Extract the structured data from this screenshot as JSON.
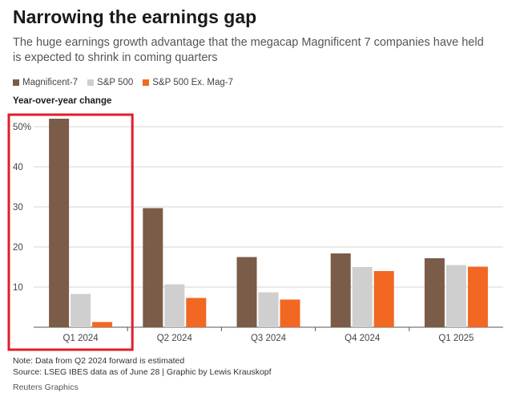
{
  "title": "Narrowing the earnings gap",
  "subtitle": "The huge earnings growth advantage that the megacap Magnificent 7 companies have held is expected to shrink in coming quarters",
  "note": "Note: Data from Q2 2024 forward is estimated",
  "source": "Source: LSEG IBES data as of June 28 | Graphic by Lewis Krauskopf",
  "brand": "Reuters Graphics",
  "colors": {
    "mag7": "#7a5c48",
    "sp500": "#cfcfcf",
    "exmag7": "#f26722",
    "highlight": "#e01e2b",
    "grid": "#d6d6d6",
    "axis": "#555555"
  },
  "chart_data": {
    "type": "bar",
    "title": "Narrowing the earnings gap",
    "ylabel": "Year-over-year change",
    "xlabel": "",
    "ylim": [
      0,
      50
    ],
    "yticks": [
      10,
      20,
      30,
      40,
      50
    ],
    "ytick_labels": [
      "10",
      "20",
      "30",
      "40",
      "50%"
    ],
    "categories": [
      "Q1 2024",
      "Q2 2024",
      "Q3 2024",
      "Q4 2024",
      "Q1 2025"
    ],
    "series": [
      {
        "name": "Magnificent-7",
        "values": [
          52,
          29.7,
          17.5,
          18.4,
          17.2
        ]
      },
      {
        "name": "S&P 500",
        "values": [
          8.3,
          10.7,
          8.7,
          15,
          15.5
        ]
      },
      {
        "name": "S&P 500 Ex. Mag-7",
        "values": [
          1.3,
          7.3,
          6.9,
          14,
          15.1
        ]
      }
    ],
    "highlighted_category": "Q1 2024",
    "legend_position": "top-left",
    "grid": true
  }
}
